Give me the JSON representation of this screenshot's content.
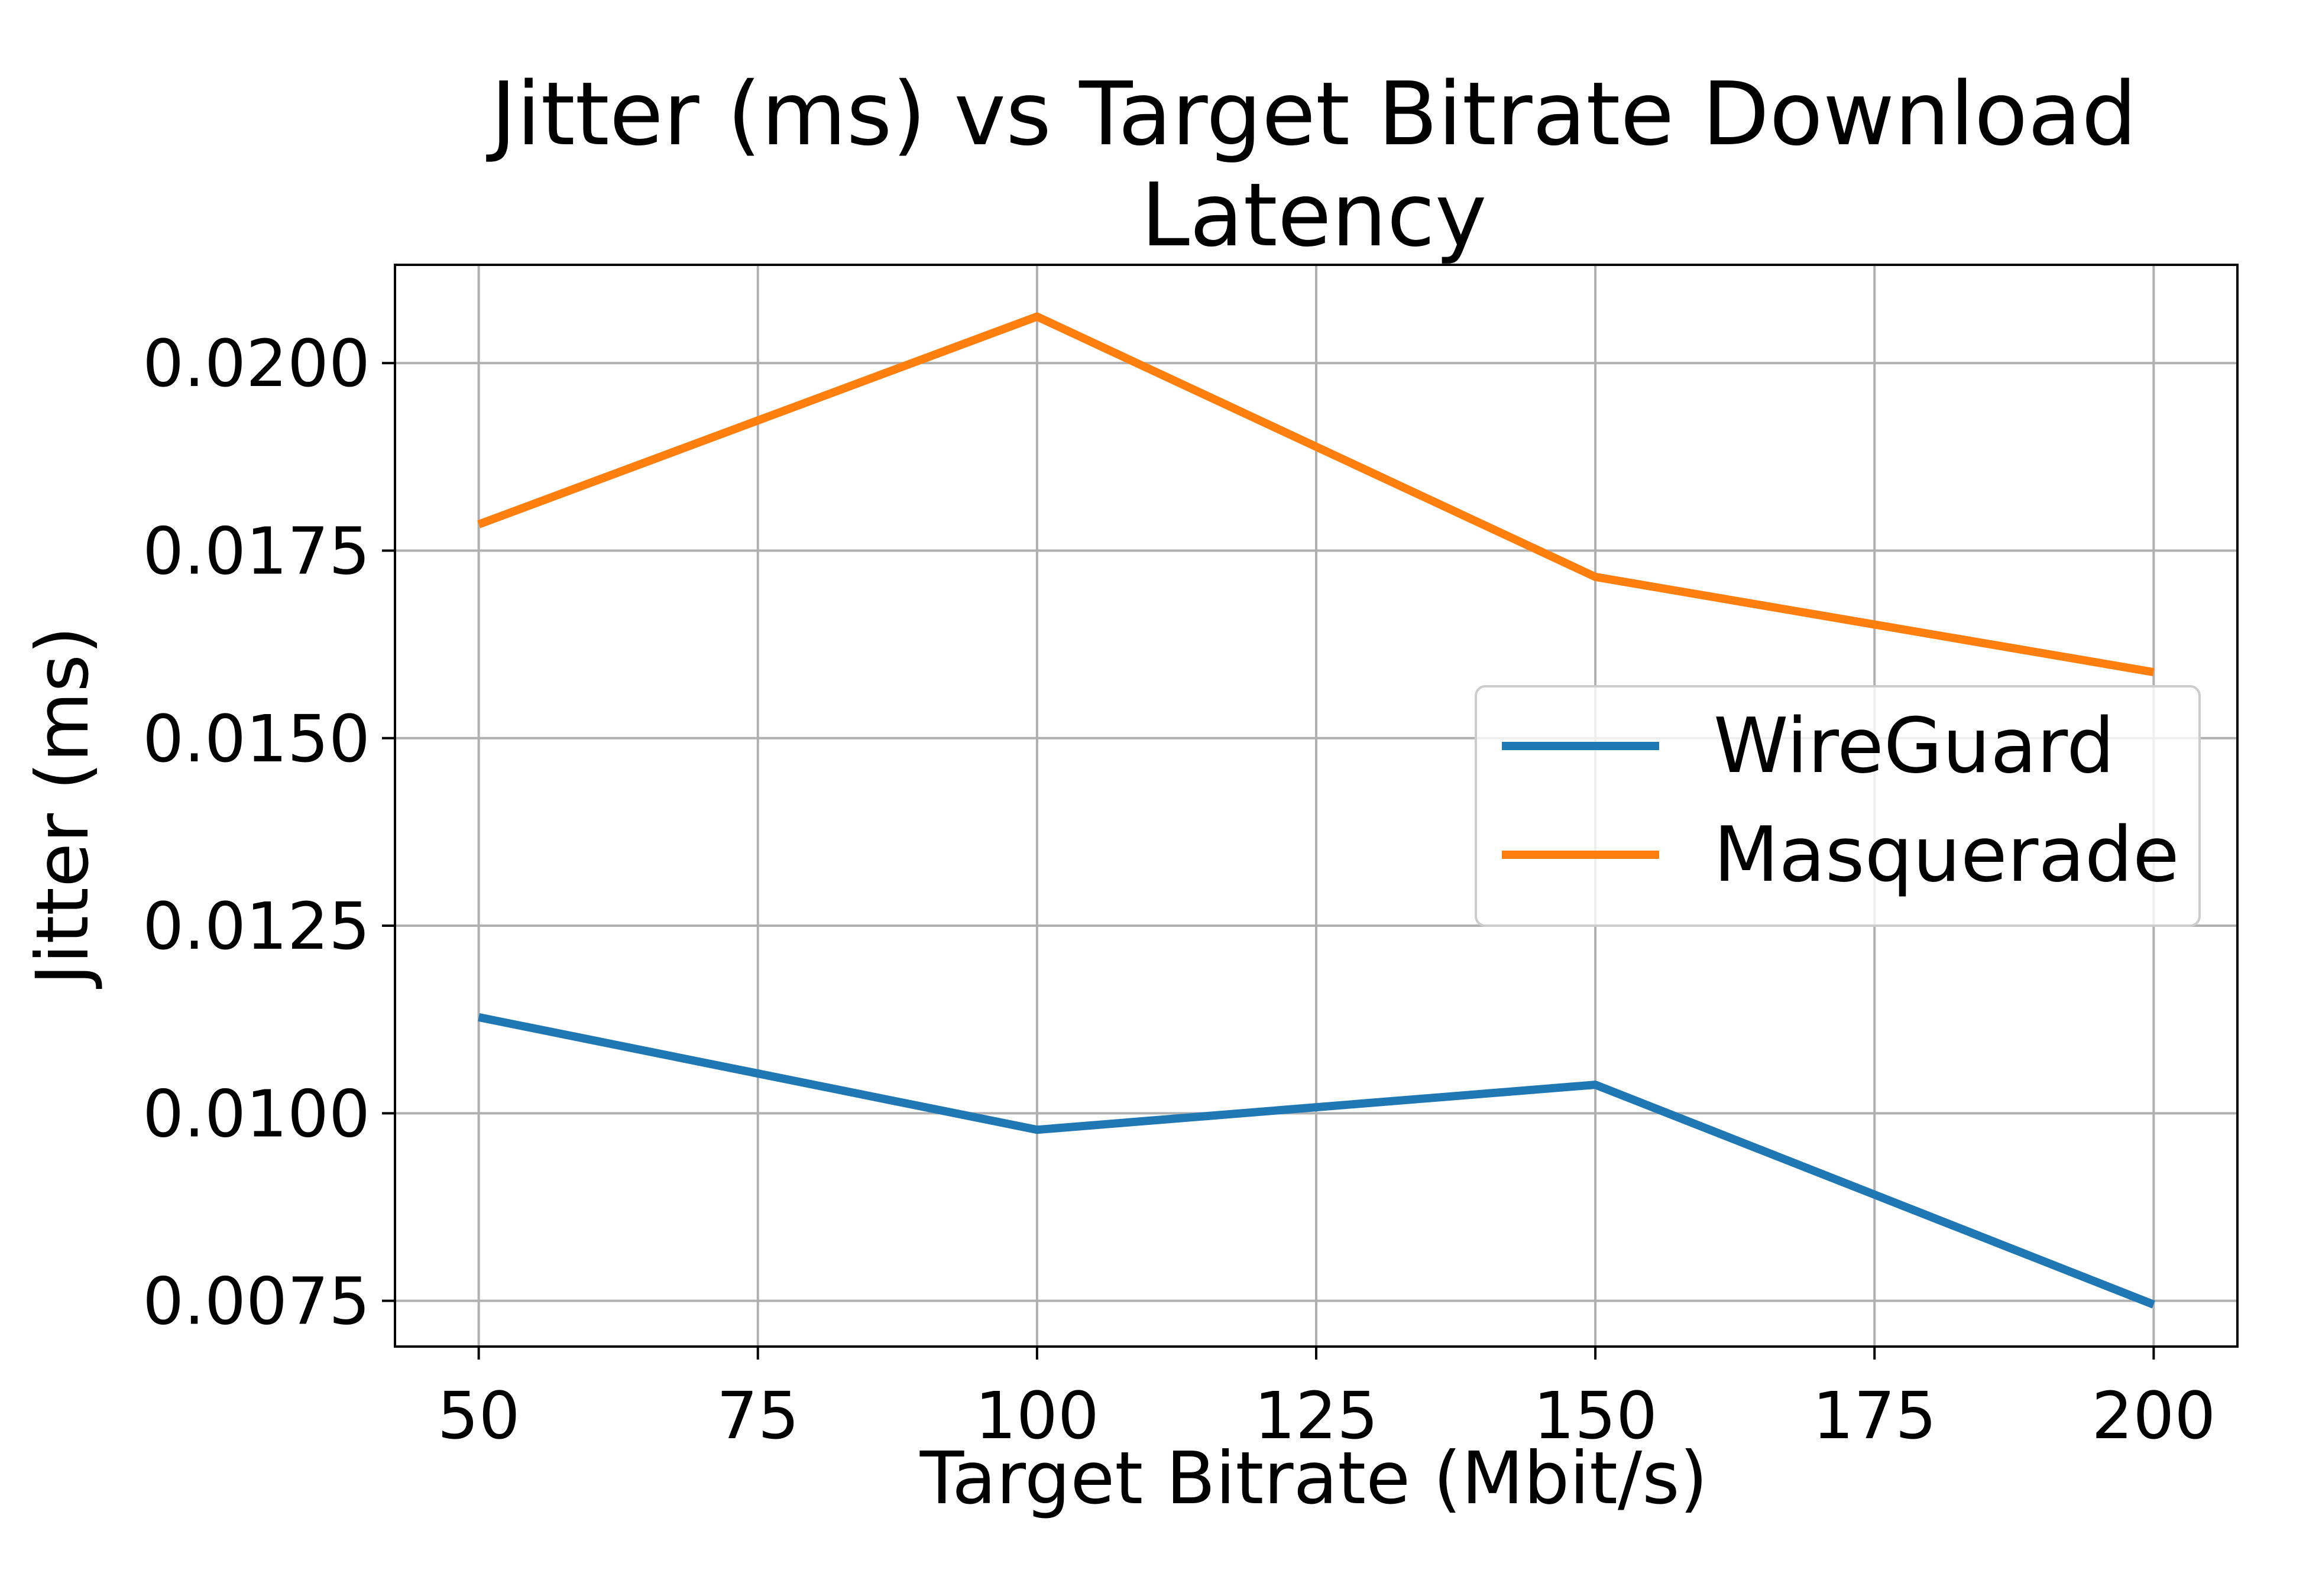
{
  "chart_data": {
    "type": "line",
    "title": "Jitter (ms) vs Target Bitrate Download Latency",
    "title_lines": [
      "Jitter (ms) vs Target Bitrate Download",
      "Latency"
    ],
    "xlabel": "Target Bitrate (Mbit/s)",
    "ylabel": "Jitter (ms)",
    "x": [
      50,
      100,
      150,
      200
    ],
    "xlim": [
      42.5,
      207.5
    ],
    "ylim": [
      0.00689,
      0.02131
    ],
    "xticks": [
      50,
      75,
      100,
      125,
      150,
      175,
      200
    ],
    "xtick_labels": [
      "50",
      "75",
      "100",
      "125",
      "150",
      "175",
      "200"
    ],
    "yticks": [
      0.0075,
      0.01,
      0.0125,
      0.015,
      0.0175,
      0.02
    ],
    "ytick_labels": [
      "0.0075",
      "0.0100",
      "0.0125",
      "0.0150",
      "0.0175",
      "0.0200"
    ],
    "grid": true,
    "legend_position": "center-right",
    "series": [
      {
        "name": "WireGuard",
        "color": "#1f77b4",
        "values": [
          0.01128,
          0.00978,
          0.01038,
          0.00745
        ]
      },
      {
        "name": "Masquerade",
        "color": "#ff7f0e",
        "values": [
          0.01785,
          0.02062,
          0.01715,
          0.01588
        ]
      }
    ]
  }
}
